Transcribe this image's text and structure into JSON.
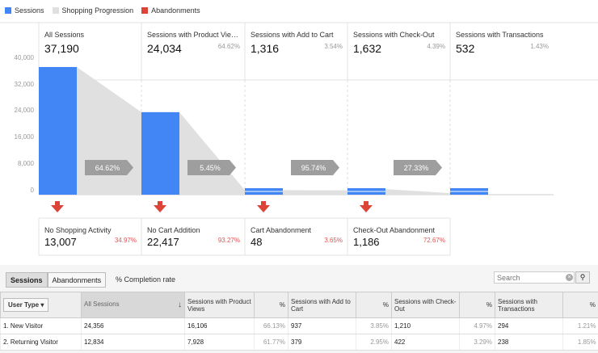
{
  "legend": [
    {
      "label": "Sessions",
      "color": "#4285f4"
    },
    {
      "label": "Shopping Progression",
      "color": "#e0e0e0"
    },
    {
      "label": "Abandonments",
      "color": "#db4437"
    }
  ],
  "stages": [
    {
      "title": "All Sessions",
      "value": "37,190",
      "pct": ""
    },
    {
      "title": "Sessions with Product Vie…",
      "value": "24,034",
      "pct": "64.62%"
    },
    {
      "title": "Sessions with Add to Cart",
      "value": "1,316",
      "pct": "3.54%"
    },
    {
      "title": "Sessions with Check-Out",
      "value": "1,632",
      "pct": "4.39%"
    },
    {
      "title": "Sessions with Transactions",
      "value": "532",
      "pct": "1.43%"
    }
  ],
  "y_ticks": [
    "40,000",
    "32,000",
    "24,000",
    "16,000",
    "8,000",
    "0"
  ],
  "chart_data": {
    "type": "bar",
    "categories": [
      "All Sessions",
      "Sessions with Product Views",
      "Sessions with Add to Cart",
      "Sessions with Check-Out",
      "Sessions with Transactions"
    ],
    "values": [
      37190,
      24034,
      1316,
      1632,
      532
    ],
    "ylim": [
      0,
      40000
    ],
    "progression_labels": [
      "64.62%",
      "5.45%",
      "95.74%",
      "27.33%"
    ],
    "progression_values": [
      24034,
      1311,
      1260,
      446
    ]
  },
  "abandonments": [
    {
      "title": "No Shopping Activity",
      "value": "13,007",
      "pct": "34.97%"
    },
    {
      "title": "No Cart Addition",
      "value": "22,417",
      "pct": "93.27%"
    },
    {
      "title": "Cart Abandonment",
      "value": "48",
      "pct": "3.65%"
    },
    {
      "title": "Check-Out Abandonment",
      "value": "1,186",
      "pct": "72.67%"
    }
  ],
  "tabs": [
    {
      "label": "Sessions",
      "active": true
    },
    {
      "label": "Abandonments",
      "active": false
    }
  ],
  "completion_label": "% Completion rate",
  "search_placeholder": "Search",
  "table": {
    "dimension_label": "User Type",
    "headers": [
      "All Sessions",
      "Sessions with Product Views",
      "%",
      "Sessions with Add to Cart",
      "%",
      "Sessions with Check-Out",
      "%",
      "Sessions with Transactions",
      "%"
    ],
    "rows": [
      {
        "num": "1.",
        "name": "New Visitor",
        "cells": [
          "24,356",
          "16,106",
          "66.13%",
          "937",
          "3.85%",
          "1,210",
          "4.97%",
          "294",
          "1.21%"
        ]
      },
      {
        "num": "2.",
        "name": "Returning Visitor",
        "cells": [
          "12,834",
          "7,928",
          "61.77%",
          "379",
          "2.95%",
          "422",
          "3.29%",
          "238",
          "1.85%"
        ]
      }
    ]
  }
}
